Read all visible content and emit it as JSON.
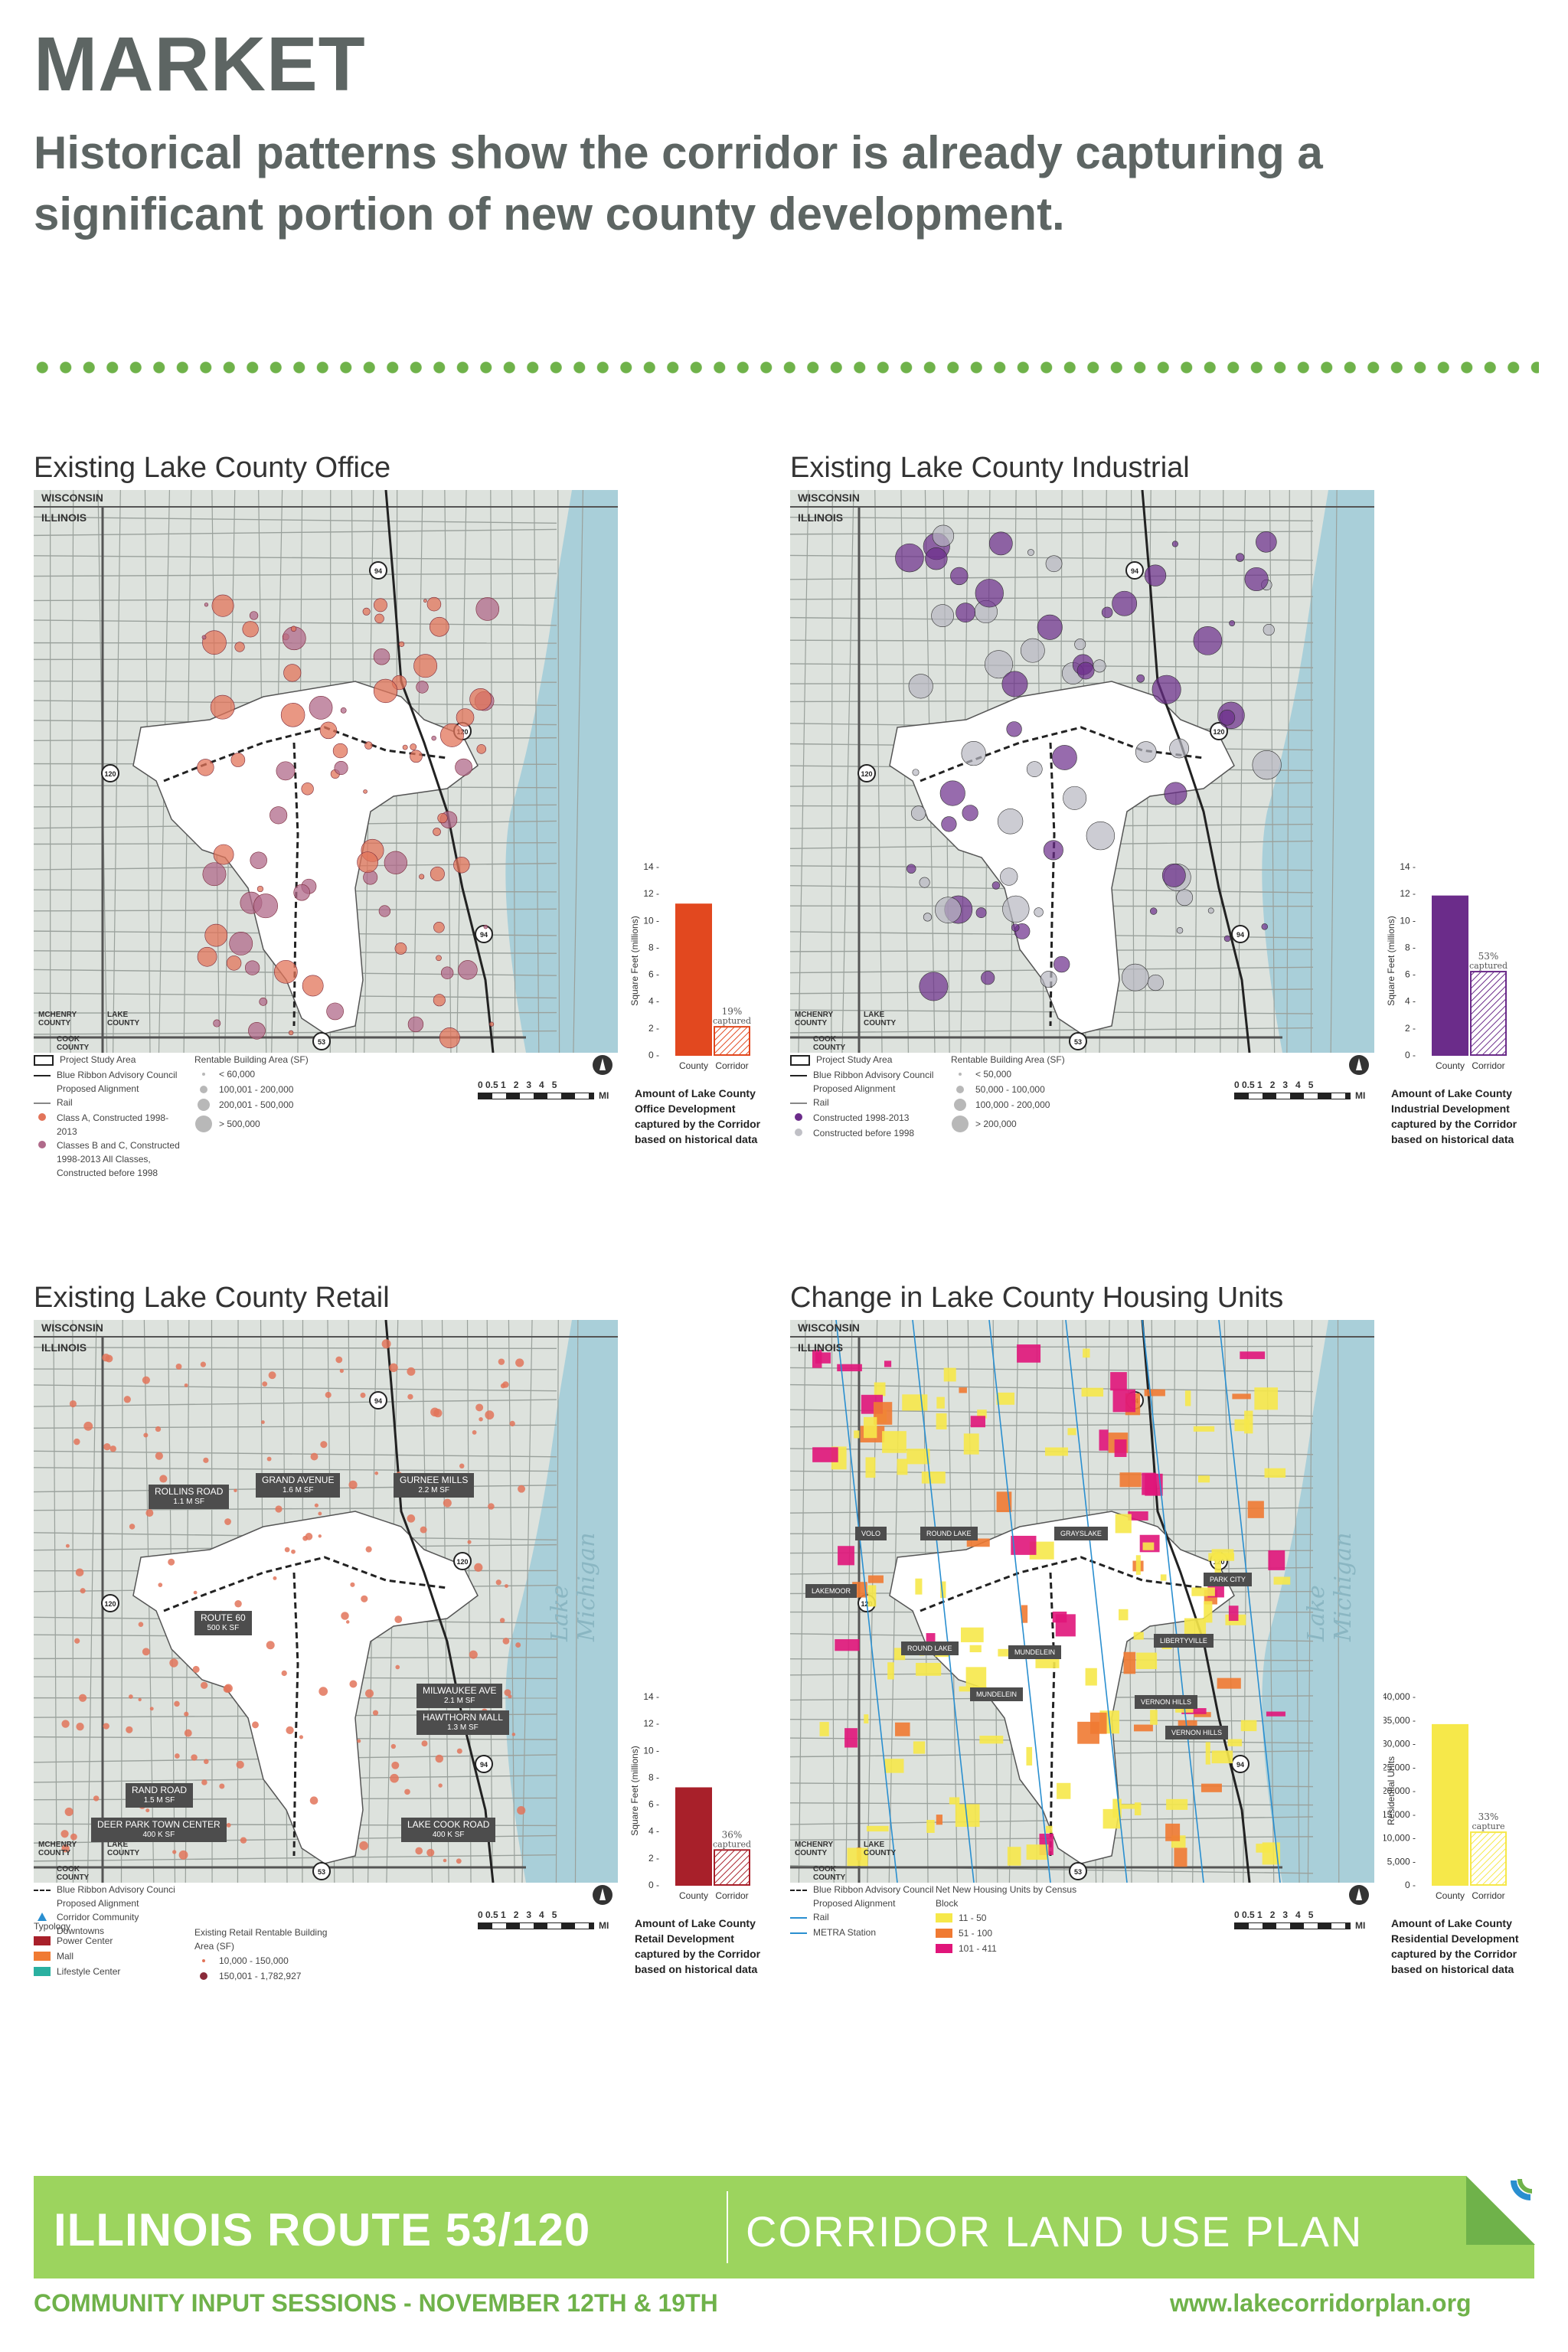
{
  "header": {
    "title": "MARKET",
    "subtitle": "Historical patterns show the corridor is already capturing a significant portion of new county development."
  },
  "map_labels": {
    "wisconsin": "WISCONSIN",
    "illinois": "ILLINOIS",
    "mchenry": "MCHENRY COUNTY",
    "lake": "LAKE COUNTY",
    "cook": "COOK COUNTY",
    "lake_michigan": "Lake Michigan"
  },
  "panels": [
    {
      "title": "Existing Lake County Office",
      "chart_data": {
        "type": "bar",
        "categories": [
          "County",
          "Corridor"
        ],
        "values": [
          11.2,
          2.1
        ],
        "ylabel": "Square Feet (millions)",
        "ylim": [
          0,
          14
        ],
        "yticks": [
          "0",
          "2",
          "4",
          "6",
          "8",
          "10",
          "12",
          "14"
        ],
        "annotation": "19% captured",
        "colors": [
          "#e2481f",
          "#e2481f"
        ]
      },
      "caption": "Amount of Lake County Office Development captured by the Corridor based on historical data",
      "legend": {
        "items": [
          "Project Study Area",
          "Blue Ribbon Advisory Council Proposed Alignment",
          "Rail",
          "Class A, Constructed 1998-2013",
          "Classes B and C, Constructed 1998-2013 All Classes, Constructed before 1998"
        ],
        "size_title": "Rentable Building Area (SF)",
        "sizes": [
          "< 60,000",
          "100,001 - 200,000",
          "200,001 - 500,000",
          "> 500,000"
        ]
      }
    },
    {
      "title": "Existing Lake County Industrial",
      "chart_data": {
        "type": "bar",
        "categories": [
          "County",
          "Corridor"
        ],
        "values": [
          11.8,
          6.2
        ],
        "ylabel": "Square Feet (millions)",
        "ylim": [
          0,
          14
        ],
        "yticks": [
          "0",
          "2",
          "4",
          "6",
          "8",
          "10",
          "12",
          "14"
        ],
        "annotation": "53% captured",
        "colors": [
          "#6b2c8a",
          "#6b2c8a"
        ]
      },
      "caption": "Amount of Lake County Industrial Development captured by the Corridor based on historical data",
      "legend": {
        "items": [
          "Project Study Area",
          "Blue Ribbon Advisory Council Proposed Alignment",
          "Rail",
          "Constructed 1998-2013",
          "Constructed before 1998"
        ],
        "size_title": "Rentable Building Area (SF)",
        "sizes": [
          "< 50,000",
          "50,000 - 100,000",
          "100,000 - 200,000",
          "> 200,000"
        ]
      }
    },
    {
      "title": "Existing Lake County Retail",
      "chart_data": {
        "type": "bar",
        "categories": [
          "County",
          "Corridor"
        ],
        "values": [
          7.2,
          2.6
        ],
        "ylabel": "Square Feet (millions)",
        "ylim": [
          0,
          14
        ],
        "yticks": [
          "0",
          "2",
          "4",
          "6",
          "8",
          "10",
          "12",
          "14"
        ],
        "annotation": "36% captured",
        "colors": [
          "#a8202a",
          "#a8202a"
        ]
      },
      "caption": "Amount of Lake County Retail Development captured by the Corridor based on historical data",
      "legend": {
        "items": [
          "Blue Ribbon Advisory Counci Proposed Alignment",
          "Corridor Community Downtowns"
        ],
        "typology_title": "Typology",
        "typology": [
          "Power Center",
          "Mall",
          "Lifestyle Center"
        ],
        "size_title": "Existing Retail Rentable Building Area (SF)",
        "sizes": [
          "10,000 - 150,000",
          "150,001 - 1,782,927"
        ]
      },
      "map_callouts": [
        {
          "name": "ROLLINS ROAD",
          "size": "1.1 M SF"
        },
        {
          "name": "GRAND AVENUE",
          "size": "1.6 M SF"
        },
        {
          "name": "GURNEE MILLS",
          "size": "2.2 M SF"
        },
        {
          "name": "ROUTE 60",
          "size": "500 K SF"
        },
        {
          "name": "MILWAUKEE AVE",
          "size": "2.1 M SF"
        },
        {
          "name": "HAWTHORN MALL",
          "size": "1.3 M SF"
        },
        {
          "name": "RAND ROAD",
          "size": "1.5 M SF"
        },
        {
          "name": "DEER PARK TOWN CENTER",
          "size": "400 K SF"
        },
        {
          "name": "LAKE COOK ROAD",
          "size": "400 K SF"
        }
      ]
    },
    {
      "title": "Change in Lake County Housing Units",
      "chart_data": {
        "type": "bar",
        "categories": [
          "County",
          "Corridor"
        ],
        "values": [
          34000,
          11200
        ],
        "ylabel": "Residential Units",
        "ylim": [
          0,
          40000
        ],
        "yticks": [
          "0",
          "5,000",
          "10,000",
          "15,000",
          "20,000",
          "25,000",
          "30,000",
          "35,000",
          "40,000"
        ],
        "annotation": "33% capture",
        "colors": [
          "#f6e84a",
          "#f6e84a"
        ]
      },
      "caption": "Amount of Lake County Residential Development captured by the Corridor based on historical data",
      "legend": {
        "items": [
          "Blue Ribbon Advisory Council Proposed Alignment",
          "Rail",
          "METRA Station"
        ],
        "size_title": "Net New Housing Units by Census Block",
        "sizes": [
          "11 - 50",
          "51 - 100",
          "101 - 411"
        ]
      },
      "map_callouts": [
        {
          "name": "VOLO"
        },
        {
          "name": "ROUND LAKE"
        },
        {
          "name": "GRAYSLAKE"
        },
        {
          "name": "LAKEMOOR"
        },
        {
          "name": "PARK CITY"
        },
        {
          "name": "ROUND LAKE"
        },
        {
          "name": "MUNDELEIN"
        },
        {
          "name": "LIBERTYVILLE"
        },
        {
          "name": "MUNDELEIN"
        },
        {
          "name": "VERNON HILLS"
        },
        {
          "name": "VERNON HILLS"
        }
      ]
    }
  ],
  "scale": {
    "ticks": "0 0.5 1   2   3   4   5",
    "unit": "MI"
  },
  "route_shields": [
    "94",
    "120",
    "120",
    "94",
    "53"
  ],
  "footer": {
    "left": "ILLINOIS ROUTE 53/120",
    "right": "CORRIDOR LAND USE PLAN",
    "sub_left": "COMMUNITY INPUT SESSIONS - NOVEMBER 12TH & 19TH",
    "sub_right": "www.lakecorridorplan.org"
  }
}
